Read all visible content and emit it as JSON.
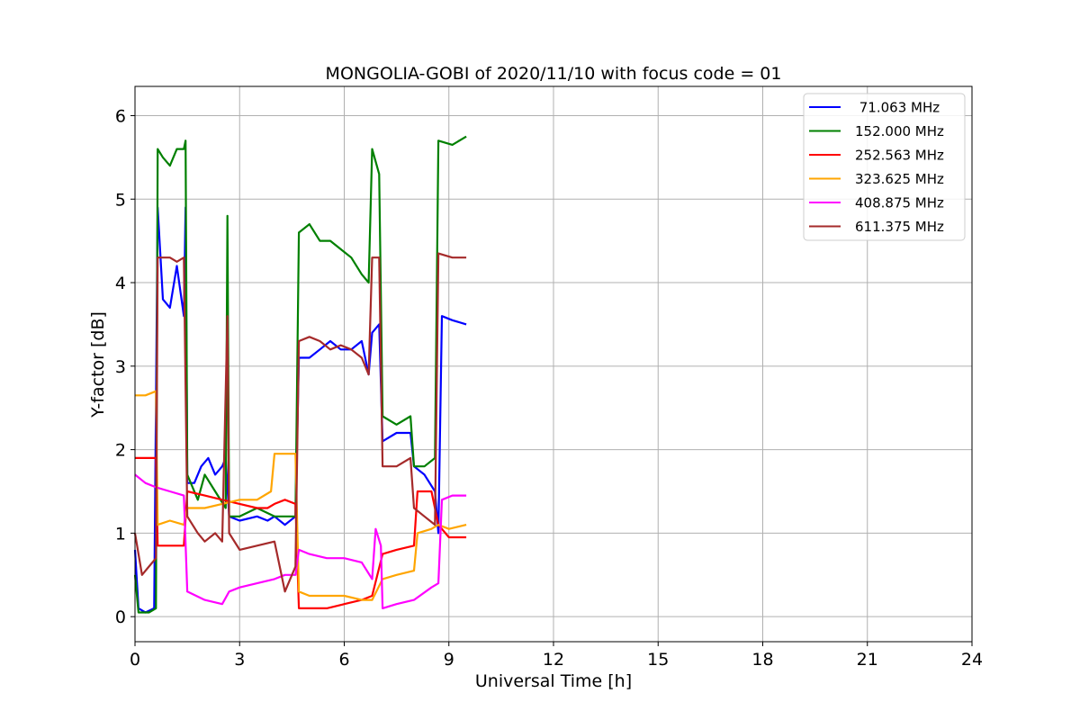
{
  "chart_data": {
    "type": "line",
    "title": "MONGOLIA-GOBI of 2020/11/10 with focus code = 01",
    "xlabel": "Universal Time [h]",
    "ylabel": "Y-factor [dB]",
    "xlim": [
      0,
      24
    ],
    "ylim": [
      -0.3,
      6.35
    ],
    "xticks": [
      0,
      3,
      6,
      9,
      12,
      15,
      18,
      21,
      24
    ],
    "yticks": [
      0,
      1,
      2,
      3,
      4,
      5,
      6
    ],
    "grid": true,
    "legend_position": "top-right",
    "series": [
      {
        "name": " 71.063 MHz",
        "color": "#0000ff",
        "points": [
          [
            0.0,
            0.8
          ],
          [
            0.1,
            0.1
          ],
          [
            0.3,
            0.05
          ],
          [
            0.55,
            0.1
          ],
          [
            0.65,
            4.9
          ],
          [
            0.8,
            3.8
          ],
          [
            1.0,
            3.7
          ],
          [
            1.2,
            4.2
          ],
          [
            1.4,
            3.6
          ],
          [
            1.45,
            4.9
          ],
          [
            1.5,
            1.6
          ],
          [
            1.7,
            1.6
          ],
          [
            1.9,
            1.8
          ],
          [
            2.1,
            1.9
          ],
          [
            2.3,
            1.7
          ],
          [
            2.5,
            1.8
          ],
          [
            2.6,
            1.9
          ],
          [
            2.7,
            1.2
          ],
          [
            3.0,
            1.15
          ],
          [
            3.5,
            1.2
          ],
          [
            3.8,
            1.15
          ],
          [
            4.0,
            1.2
          ],
          [
            4.3,
            1.1
          ],
          [
            4.6,
            1.2
          ],
          [
            4.7,
            3.1
          ],
          [
            5.0,
            3.1
          ],
          [
            5.3,
            3.2
          ],
          [
            5.6,
            3.3
          ],
          [
            5.9,
            3.2
          ],
          [
            6.2,
            3.2
          ],
          [
            6.5,
            3.3
          ],
          [
            6.7,
            2.9
          ],
          [
            6.8,
            3.4
          ],
          [
            7.0,
            3.5
          ],
          [
            7.1,
            2.1
          ],
          [
            7.5,
            2.2
          ],
          [
            7.9,
            2.2
          ],
          [
            8.0,
            1.8
          ],
          [
            8.3,
            1.7
          ],
          [
            8.6,
            1.5
          ],
          [
            8.7,
            1.0
          ],
          [
            8.8,
            3.6
          ],
          [
            9.1,
            3.55
          ],
          [
            9.5,
            3.5
          ]
        ]
      },
      {
        "name": "152.000 MHz",
        "color": "#008000",
        "points": [
          [
            0.0,
            0.5
          ],
          [
            0.1,
            0.05
          ],
          [
            0.4,
            0.05
          ],
          [
            0.6,
            0.1
          ],
          [
            0.65,
            5.6
          ],
          [
            0.8,
            5.5
          ],
          [
            1.0,
            5.4
          ],
          [
            1.2,
            5.6
          ],
          [
            1.4,
            5.6
          ],
          [
            1.45,
            5.7
          ],
          [
            1.5,
            1.7
          ],
          [
            1.8,
            1.4
          ],
          [
            2.0,
            1.7
          ],
          [
            2.3,
            1.5
          ],
          [
            2.6,
            1.3
          ],
          [
            2.65,
            4.8
          ],
          [
            2.7,
            1.2
          ],
          [
            3.0,
            1.2
          ],
          [
            3.5,
            1.3
          ],
          [
            4.0,
            1.2
          ],
          [
            4.3,
            1.2
          ],
          [
            4.6,
            1.2
          ],
          [
            4.7,
            4.6
          ],
          [
            5.0,
            4.7
          ],
          [
            5.3,
            4.5
          ],
          [
            5.6,
            4.5
          ],
          [
            5.9,
            4.4
          ],
          [
            6.2,
            4.3
          ],
          [
            6.5,
            4.1
          ],
          [
            6.7,
            4.0
          ],
          [
            6.8,
            5.6
          ],
          [
            7.0,
            5.3
          ],
          [
            7.1,
            2.4
          ],
          [
            7.5,
            2.3
          ],
          [
            7.9,
            2.4
          ],
          [
            8.0,
            1.8
          ],
          [
            8.3,
            1.8
          ],
          [
            8.6,
            1.9
          ],
          [
            8.7,
            5.7
          ],
          [
            9.1,
            5.65
          ],
          [
            9.5,
            5.75
          ]
        ]
      },
      {
        "name": "252.563 MHz",
        "color": "#ff0000",
        "points": [
          [
            0.0,
            1.9
          ],
          [
            0.3,
            1.9
          ],
          [
            0.6,
            1.9
          ],
          [
            0.65,
            0.85
          ],
          [
            1.0,
            0.85
          ],
          [
            1.4,
            0.85
          ],
          [
            1.5,
            1.5
          ],
          [
            2.0,
            1.45
          ],
          [
            2.5,
            1.4
          ],
          [
            3.0,
            1.35
          ],
          [
            3.5,
            1.3
          ],
          [
            3.8,
            1.3
          ],
          [
            4.0,
            1.35
          ],
          [
            4.3,
            1.4
          ],
          [
            4.6,
            1.35
          ],
          [
            4.7,
            0.1
          ],
          [
            5.0,
            0.1
          ],
          [
            5.5,
            0.1
          ],
          [
            6.0,
            0.15
          ],
          [
            6.5,
            0.2
          ],
          [
            6.8,
            0.25
          ],
          [
            7.1,
            0.75
          ],
          [
            7.5,
            0.8
          ],
          [
            8.0,
            0.85
          ],
          [
            8.1,
            1.5
          ],
          [
            8.5,
            1.5
          ],
          [
            8.7,
            1.1
          ],
          [
            9.0,
            0.95
          ],
          [
            9.5,
            0.95
          ]
        ]
      },
      {
        "name": "323.625 MHz",
        "color": "#ffa500",
        "points": [
          [
            0.0,
            2.65
          ],
          [
            0.3,
            2.65
          ],
          [
            0.6,
            2.7
          ],
          [
            0.65,
            1.1
          ],
          [
            1.0,
            1.15
          ],
          [
            1.4,
            1.1
          ],
          [
            1.5,
            1.3
          ],
          [
            2.0,
            1.3
          ],
          [
            2.5,
            1.35
          ],
          [
            3.0,
            1.4
          ],
          [
            3.5,
            1.4
          ],
          [
            3.9,
            1.5
          ],
          [
            4.0,
            1.95
          ],
          [
            4.3,
            1.95
          ],
          [
            4.6,
            1.95
          ],
          [
            4.7,
            0.3
          ],
          [
            5.0,
            0.25
          ],
          [
            5.5,
            0.25
          ],
          [
            6.0,
            0.25
          ],
          [
            6.5,
            0.2
          ],
          [
            6.8,
            0.2
          ],
          [
            7.1,
            0.45
          ],
          [
            7.5,
            0.5
          ],
          [
            8.0,
            0.55
          ],
          [
            8.1,
            1.0
          ],
          [
            8.5,
            1.05
          ],
          [
            8.7,
            1.1
          ],
          [
            9.0,
            1.05
          ],
          [
            9.5,
            1.1
          ]
        ]
      },
      {
        "name": "408.875 MHz",
        "color": "#ff00ff",
        "points": [
          [
            0.0,
            1.7
          ],
          [
            0.3,
            1.6
          ],
          [
            0.6,
            1.55
          ],
          [
            1.0,
            1.5
          ],
          [
            1.4,
            1.45
          ],
          [
            1.5,
            0.3
          ],
          [
            2.0,
            0.2
          ],
          [
            2.5,
            0.15
          ],
          [
            2.7,
            0.3
          ],
          [
            3.0,
            0.35
          ],
          [
            3.5,
            0.4
          ],
          [
            4.0,
            0.45
          ],
          [
            4.3,
            0.5
          ],
          [
            4.6,
            0.5
          ],
          [
            4.7,
            0.8
          ],
          [
            5.0,
            0.75
          ],
          [
            5.5,
            0.7
          ],
          [
            6.0,
            0.7
          ],
          [
            6.5,
            0.65
          ],
          [
            6.8,
            0.45
          ],
          [
            6.9,
            1.05
          ],
          [
            7.05,
            0.85
          ],
          [
            7.1,
            0.1
          ],
          [
            7.5,
            0.15
          ],
          [
            8.0,
            0.2
          ],
          [
            8.5,
            0.35
          ],
          [
            8.7,
            0.4
          ],
          [
            8.8,
            1.4
          ],
          [
            9.1,
            1.45
          ],
          [
            9.5,
            1.45
          ]
        ]
      },
      {
        "name": "611.375 MHz",
        "color": "#a52a2a",
        "points": [
          [
            0.0,
            1.0
          ],
          [
            0.2,
            0.5
          ],
          [
            0.4,
            0.6
          ],
          [
            0.6,
            0.7
          ],
          [
            0.65,
            4.3
          ],
          [
            0.8,
            4.3
          ],
          [
            1.0,
            4.3
          ],
          [
            1.2,
            4.25
          ],
          [
            1.4,
            4.3
          ],
          [
            1.5,
            1.2
          ],
          [
            1.8,
            1.0
          ],
          [
            2.0,
            0.9
          ],
          [
            2.3,
            1.0
          ],
          [
            2.5,
            0.9
          ],
          [
            2.65,
            3.6
          ],
          [
            2.7,
            1.0
          ],
          [
            3.0,
            0.8
          ],
          [
            3.5,
            0.85
          ],
          [
            4.0,
            0.9
          ],
          [
            4.3,
            0.3
          ],
          [
            4.6,
            0.6
          ],
          [
            4.7,
            3.3
          ],
          [
            5.0,
            3.35
          ],
          [
            5.3,
            3.3
          ],
          [
            5.6,
            3.2
          ],
          [
            5.9,
            3.25
          ],
          [
            6.2,
            3.2
          ],
          [
            6.5,
            3.1
          ],
          [
            6.7,
            2.9
          ],
          [
            6.8,
            4.3
          ],
          [
            7.0,
            4.3
          ],
          [
            7.1,
            1.8
          ],
          [
            7.5,
            1.8
          ],
          [
            7.9,
            1.9
          ],
          [
            8.0,
            1.3
          ],
          [
            8.3,
            1.2
          ],
          [
            8.6,
            1.1
          ],
          [
            8.7,
            4.35
          ],
          [
            9.1,
            4.3
          ],
          [
            9.5,
            4.3
          ]
        ]
      }
    ]
  }
}
